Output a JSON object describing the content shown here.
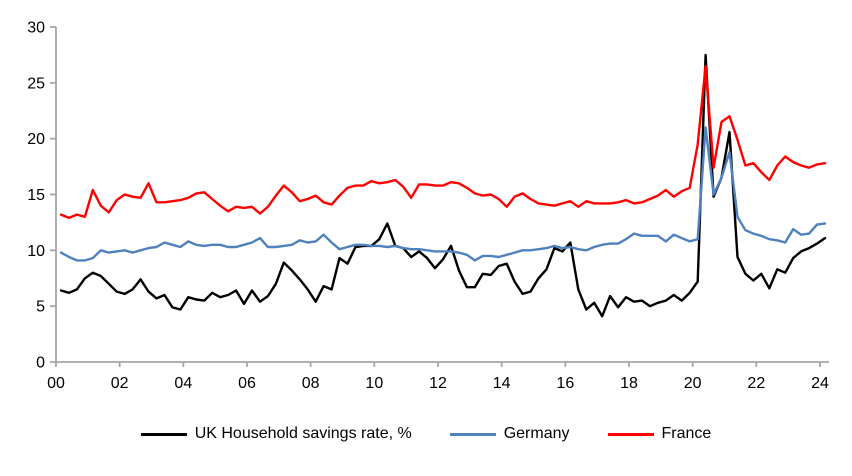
{
  "chart_data": {
    "type": "line",
    "title": "",
    "x_unit": "year, quarterly observations 2000Q1-2024Q1",
    "x_tick_labels": [
      "00",
      "02",
      "04",
      "06",
      "08",
      "10",
      "12",
      "14",
      "16",
      "18",
      "20",
      "22",
      "24"
    ],
    "y_ticks": [
      0,
      5,
      10,
      15,
      20,
      25,
      30
    ],
    "ylim": [
      0,
      30
    ],
    "grid": false,
    "legend_position": "bottom",
    "series": [
      {
        "name": "UK Household savings rate, %",
        "color": "#000000",
        "values": [
          6.4,
          6.2,
          6.5,
          7.5,
          8.0,
          7.7,
          7.0,
          6.3,
          6.1,
          6.5,
          7.4,
          6.3,
          5.7,
          6.0,
          4.9,
          4.7,
          5.8,
          5.6,
          5.5,
          6.2,
          5.8,
          6.0,
          6.4,
          5.2,
          6.4,
          5.4,
          5.9,
          7.0,
          8.9,
          8.2,
          7.4,
          6.5,
          5.4,
          6.8,
          6.5,
          9.3,
          8.8,
          10.3,
          10.4,
          10.4,
          11.0,
          12.4,
          10.4,
          10.2,
          9.4,
          9.9,
          9.3,
          8.4,
          9.2,
          10.4,
          8.2,
          6.7,
          6.7,
          7.9,
          7.8,
          8.6,
          8.8,
          7.2,
          6.1,
          6.3,
          7.5,
          8.3,
          10.2,
          9.9,
          10.7,
          6.5,
          4.7,
          5.3,
          4.1,
          5.9,
          4.9,
          5.8,
          5.4,
          5.5,
          5.0,
          5.3,
          5.5,
          6.0,
          5.5,
          6.2,
          7.2,
          27.5,
          14.8,
          16.5,
          20.6,
          9.4,
          7.9,
          7.3,
          7.9,
          6.6,
          8.3,
          8.0,
          9.3,
          9.9,
          10.2,
          10.6,
          11.1
        ]
      },
      {
        "name": "Germany",
        "color": "#4F81BD",
        "values": [
          9.8,
          9.4,
          9.1,
          9.1,
          9.3,
          10.0,
          9.8,
          9.9,
          10.0,
          9.8,
          10.0,
          10.2,
          10.3,
          10.7,
          10.5,
          10.3,
          10.8,
          10.5,
          10.4,
          10.5,
          10.5,
          10.3,
          10.3,
          10.5,
          10.7,
          11.1,
          10.3,
          10.3,
          10.4,
          10.5,
          10.9,
          10.7,
          10.8,
          11.4,
          10.7,
          10.1,
          10.3,
          10.5,
          10.5,
          10.4,
          10.4,
          10.3,
          10.4,
          10.2,
          10.1,
          10.1,
          10.0,
          9.9,
          9.9,
          9.9,
          9.8,
          9.6,
          9.1,
          9.5,
          9.5,
          9.4,
          9.6,
          9.8,
          10.0,
          10.0,
          10.1,
          10.2,
          10.4,
          10.2,
          10.3,
          10.1,
          10.0,
          10.3,
          10.5,
          10.6,
          10.6,
          11.0,
          11.5,
          11.3,
          11.3,
          11.3,
          10.8,
          11.4,
          11.1,
          10.8,
          11.0,
          21.0,
          15.0,
          16.5,
          18.8,
          13.0,
          11.8,
          11.5,
          11.3,
          11.0,
          10.9,
          10.7,
          11.9,
          11.4,
          11.5,
          12.3,
          12.4
        ]
      },
      {
        "name": "France",
        "color": "#FF0000",
        "values": [
          13.2,
          12.9,
          13.2,
          13.0,
          15.4,
          14.0,
          13.4,
          14.5,
          15.0,
          14.8,
          14.7,
          16.0,
          14.3,
          14.3,
          14.4,
          14.5,
          14.7,
          15.1,
          15.2,
          14.6,
          14.0,
          13.5,
          13.9,
          13.8,
          13.9,
          13.3,
          13.9,
          14.9,
          15.8,
          15.2,
          14.4,
          14.6,
          14.9,
          14.3,
          14.1,
          14.9,
          15.6,
          15.8,
          15.8,
          16.2,
          16.0,
          16.1,
          16.3,
          15.7,
          14.7,
          15.9,
          15.9,
          15.8,
          15.8,
          16.1,
          16.0,
          15.6,
          15.1,
          14.9,
          15.0,
          14.6,
          13.9,
          14.8,
          15.1,
          14.6,
          14.2,
          14.1,
          14.0,
          14.2,
          14.4,
          13.9,
          14.4,
          14.2,
          14.2,
          14.2,
          14.3,
          14.5,
          14.2,
          14.3,
          14.6,
          14.9,
          15.4,
          14.8,
          15.3,
          15.6,
          19.5,
          26.5,
          17.4,
          21.5,
          22.0,
          19.9,
          17.6,
          17.8,
          17.0,
          16.3,
          17.6,
          18.4,
          17.9,
          17.6,
          17.4,
          17.7,
          17.8
        ]
      }
    ]
  },
  "legend": {
    "items": [
      {
        "label": "UK Household savings rate, %"
      },
      {
        "label": "Germany"
      },
      {
        "label": "France"
      }
    ]
  },
  "colors": {
    "axis": "#A6A6A6",
    "background": "#FFFFFF",
    "tick_text": "#000000"
  }
}
